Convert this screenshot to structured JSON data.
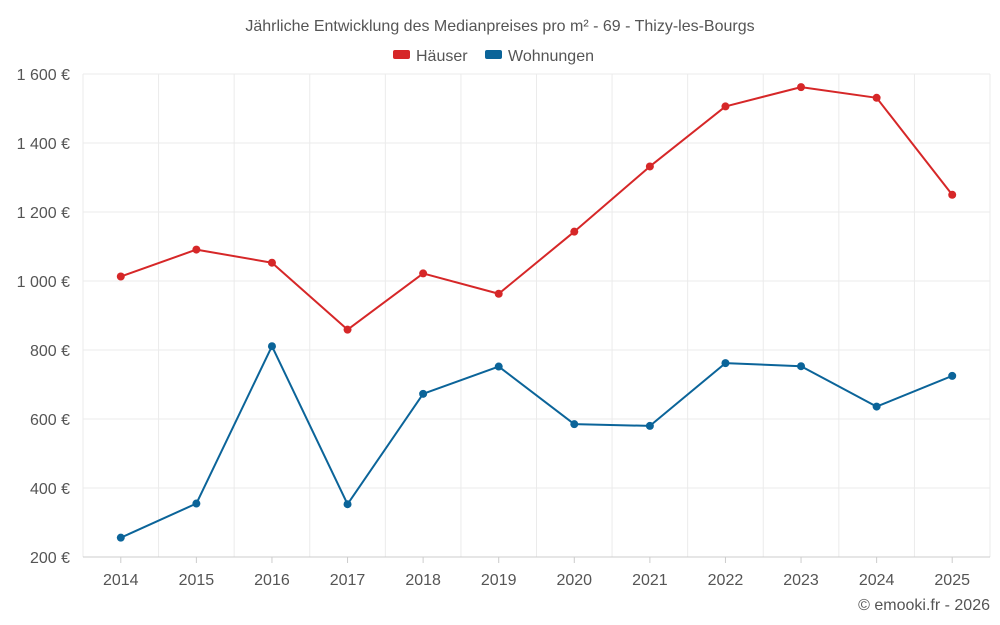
{
  "chart_data": {
    "type": "line",
    "title": "Jährliche Entwicklung des Medianpreises pro m² - 69 - Thizy-les-Bourgs",
    "categories": [
      "2014",
      "2015",
      "2016",
      "2017",
      "2018",
      "2019",
      "2020",
      "2021",
      "2022",
      "2023",
      "2024",
      "2025"
    ],
    "series": [
      {
        "name": "Häuser",
        "color": "#d62728",
        "values": [
          1013,
          1091,
          1053,
          859,
          1022,
          963,
          1143,
          1332,
          1506,
          1562,
          1531,
          1250
        ]
      },
      {
        "name": "Wohnungen",
        "color": "#0b6499",
        "values": [
          256,
          355,
          811,
          353,
          673,
          752,
          585,
          580,
          762,
          753,
          636,
          725
        ]
      }
    ],
    "ylim": [
      200,
      1600
    ],
    "yticks": [
      200,
      400,
      600,
      800,
      1000,
      1200,
      1400,
      1600
    ],
    "ytick_labels": [
      "200 €",
      "400 €",
      "600 €",
      "800 €",
      "1 000 €",
      "1 200 €",
      "1 400 €",
      "1 600 €"
    ],
    "xlabel": "",
    "ylabel": "",
    "grid": true,
    "legend_position": "top-center",
    "credit": "© emooki.fr - 2026"
  }
}
